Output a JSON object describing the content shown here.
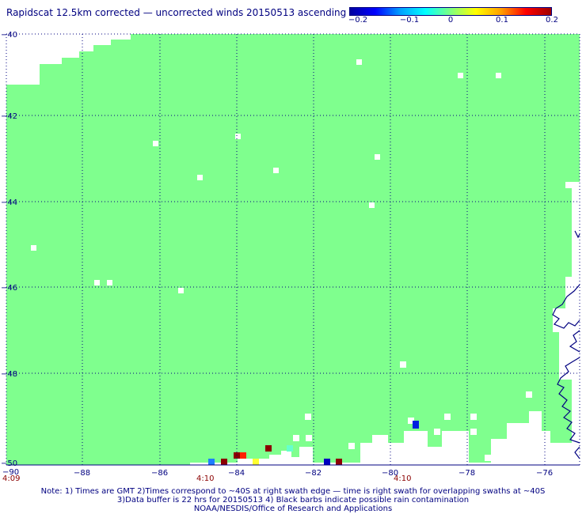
{
  "title": "Rapidscat 12.5km corrected — uncorrected winds 20150513 ascending",
  "colorbar": {
    "ticks": [
      "−0.2",
      "−0.1",
      "0",
      "0.1",
      "0.2"
    ],
    "colors": [
      "#0000a0",
      "#0000ff",
      "#00a0ff",
      "#00ffff",
      "#7fff7f",
      "#ffff00",
      "#ffa000",
      "#ff0000",
      "#a00000"
    ]
  },
  "map": {
    "fill_color": "#7fff8e",
    "grid_color": "#000080",
    "coast_color": "#000080",
    "lon_labels": [
      "−88",
      "−86",
      "−84",
      "−82",
      "−80",
      "−78",
      "−76"
    ],
    "lat_labels": [
      "−40",
      "−42",
      "−44",
      "−46",
      "−48",
      "−50"
    ],
    "corner_label": "−90",
    "times": [
      "4:09",
      "4:10",
      "4:10"
    ]
  },
  "notes": [
    "Note: 1) Times are GMT 2)Times correspond to ~40S at right swath edge — time is right swath for overlapping swaths at ~40S",
    "3)Data buffer is 22 hrs for 20150513 4) Black barbs indicate possible rain contamination",
    "NOAA/NESDIS/Office of Research and Applications"
  ]
}
